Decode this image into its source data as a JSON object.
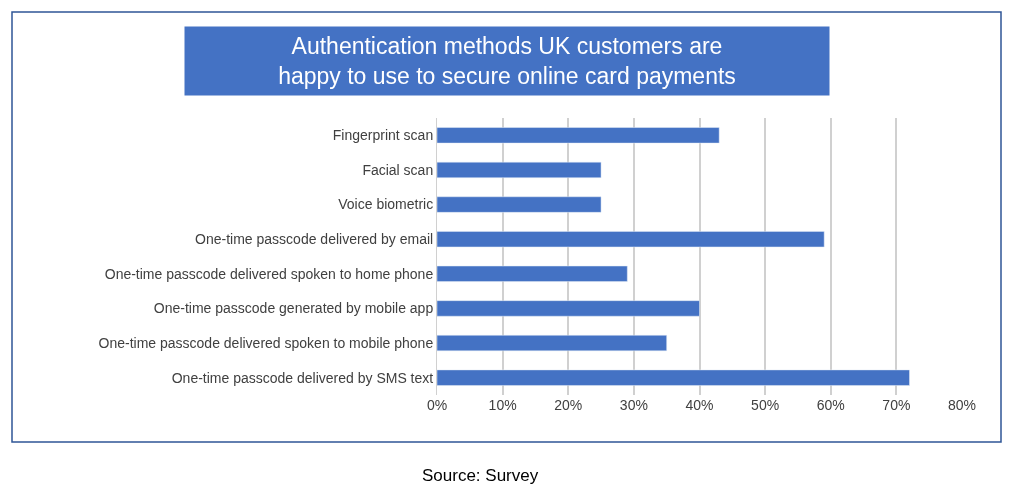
{
  "chart_data": {
    "type": "bar",
    "orientation": "horizontal",
    "title": "Authentication methods UK customers are happy to use to secure online card payments",
    "categories": [
      "Fingerprint scan",
      "Facial scan",
      "Voice biometric",
      "One-time passcode delivered by email",
      "One-time passcode delivered spoken to home phone",
      "One-time passcode generated by mobile app",
      "One-time passcode delivered spoken to mobile phone",
      "One-time passcode delivered by SMS text"
    ],
    "values": [
      43,
      25,
      25,
      59,
      29,
      40,
      35,
      72
    ],
    "color": "#4472c4",
    "xlim": [
      0,
      80
    ],
    "xticks": [
      {
        "value": 0,
        "label": "0%"
      },
      {
        "value": 10,
        "label": "10%"
      },
      {
        "value": 20,
        "label": "20%"
      },
      {
        "value": 30,
        "label": "30%"
      },
      {
        "value": 40,
        "label": "40%"
      },
      {
        "value": 50,
        "label": "50%"
      },
      {
        "value": 60,
        "label": "60%"
      },
      {
        "value": 70,
        "label": "70%"
      },
      {
        "value": 80,
        "label": "80%"
      }
    ],
    "grid": "x",
    "annotations": [
      "Source: Survey"
    ]
  }
}
